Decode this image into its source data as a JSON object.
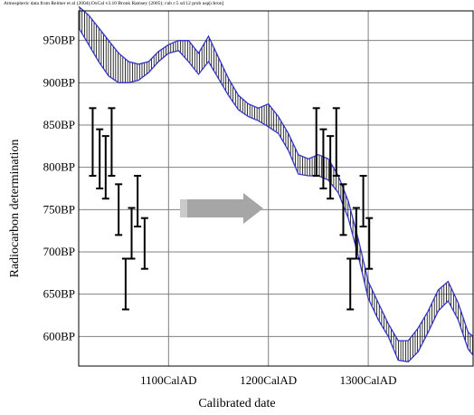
{
  "chart_data": {
    "type": "line",
    "attribution": "Atmospheric data from Reimer et al (2004);OxCal v3.10 Bronk Ramsey (2005); cub r:5 sd:12 prob usp[chron]",
    "xlabel": "Calibrated date",
    "ylabel": "Radiocarbon determination",
    "xlim": [
      1010,
      1405
    ],
    "ylim": [
      565,
      985
    ],
    "x_ticks": [
      {
        "value": 1100,
        "label": "1100CalAD"
      },
      {
        "value": 1200,
        "label": "1200CalAD"
      },
      {
        "value": 1300,
        "label": "1300CalAD"
      }
    ],
    "y_ticks": [
      {
        "value": 600,
        "label": "600BP"
      },
      {
        "value": 650,
        "label": "650BP"
      },
      {
        "value": 700,
        "label": "700BP"
      },
      {
        "value": 750,
        "label": "750BP"
      },
      {
        "value": 800,
        "label": "800BP"
      },
      {
        "value": 850,
        "label": "850BP"
      },
      {
        "value": 900,
        "label": "900BP"
      },
      {
        "value": 950,
        "label": "950BP"
      }
    ],
    "grid": true,
    "calibration_band": {
      "x": [
        1010,
        1020,
        1030,
        1040,
        1050,
        1060,
        1070,
        1080,
        1090,
        1100,
        1110,
        1120,
        1130,
        1140,
        1150,
        1160,
        1170,
        1180,
        1190,
        1200,
        1210,
        1220,
        1230,
        1240,
        1250,
        1260,
        1270,
        1280,
        1290,
        1300,
        1310,
        1320,
        1330,
        1340,
        1350,
        1360,
        1370,
        1380,
        1390,
        1400,
        1405
      ],
      "upper": [
        990,
        980,
        965,
        950,
        935,
        925,
        922,
        925,
        937,
        945,
        950,
        950,
        935,
        955,
        930,
        905,
        885,
        875,
        870,
        875,
        860,
        840,
        815,
        810,
        815,
        810,
        790,
        760,
        715,
        665,
        640,
        615,
        595,
        595,
        610,
        630,
        655,
        665,
        640,
        605,
        600
      ],
      "lower": [
        965,
        945,
        925,
        908,
        900,
        900,
        903,
        912,
        925,
        935,
        938,
        925,
        910,
        925,
        905,
        885,
        868,
        860,
        855,
        848,
        840,
        820,
        792,
        790,
        790,
        785,
        770,
        740,
        695,
        645,
        620,
        600,
        572,
        570,
        582,
        605,
        630,
        642,
        620,
        585,
        578
      ]
    },
    "measurements_left": [
      {
        "x": 1024,
        "y": 830,
        "err": 40
      },
      {
        "x": 1031,
        "y": 810,
        "err": 35
      },
      {
        "x": 1037,
        "y": 800,
        "err": 37
      },
      {
        "x": 1043,
        "y": 830,
        "err": 40
      },
      {
        "x": 1050,
        "y": 750,
        "err": 30
      },
      {
        "x": 1057,
        "y": 662,
        "err": 30
      },
      {
        "x": 1063,
        "y": 722,
        "err": 30
      },
      {
        "x": 1069,
        "y": 760,
        "err": 30
      },
      {
        "x": 1076,
        "y": 710,
        "err": 30
      }
    ],
    "measurements_right": [
      {
        "x": 1248,
        "y": 830,
        "err": 40
      },
      {
        "x": 1255,
        "y": 810,
        "err": 35
      },
      {
        "x": 1262,
        "y": 800,
        "err": 37
      },
      {
        "x": 1268,
        "y": 830,
        "err": 40
      },
      {
        "x": 1275,
        "y": 750,
        "err": 30
      },
      {
        "x": 1282,
        "y": 662,
        "err": 30
      },
      {
        "x": 1288,
        "y": 722,
        "err": 30
      },
      {
        "x": 1295,
        "y": 760,
        "err": 30
      },
      {
        "x": 1301,
        "y": 710,
        "err": 30
      }
    ],
    "colors": {
      "band": "#3333cc",
      "hatch": "#000000",
      "grid": "#808080",
      "errorbar": "#000000",
      "arrow": "#a6a6a6"
    }
  }
}
